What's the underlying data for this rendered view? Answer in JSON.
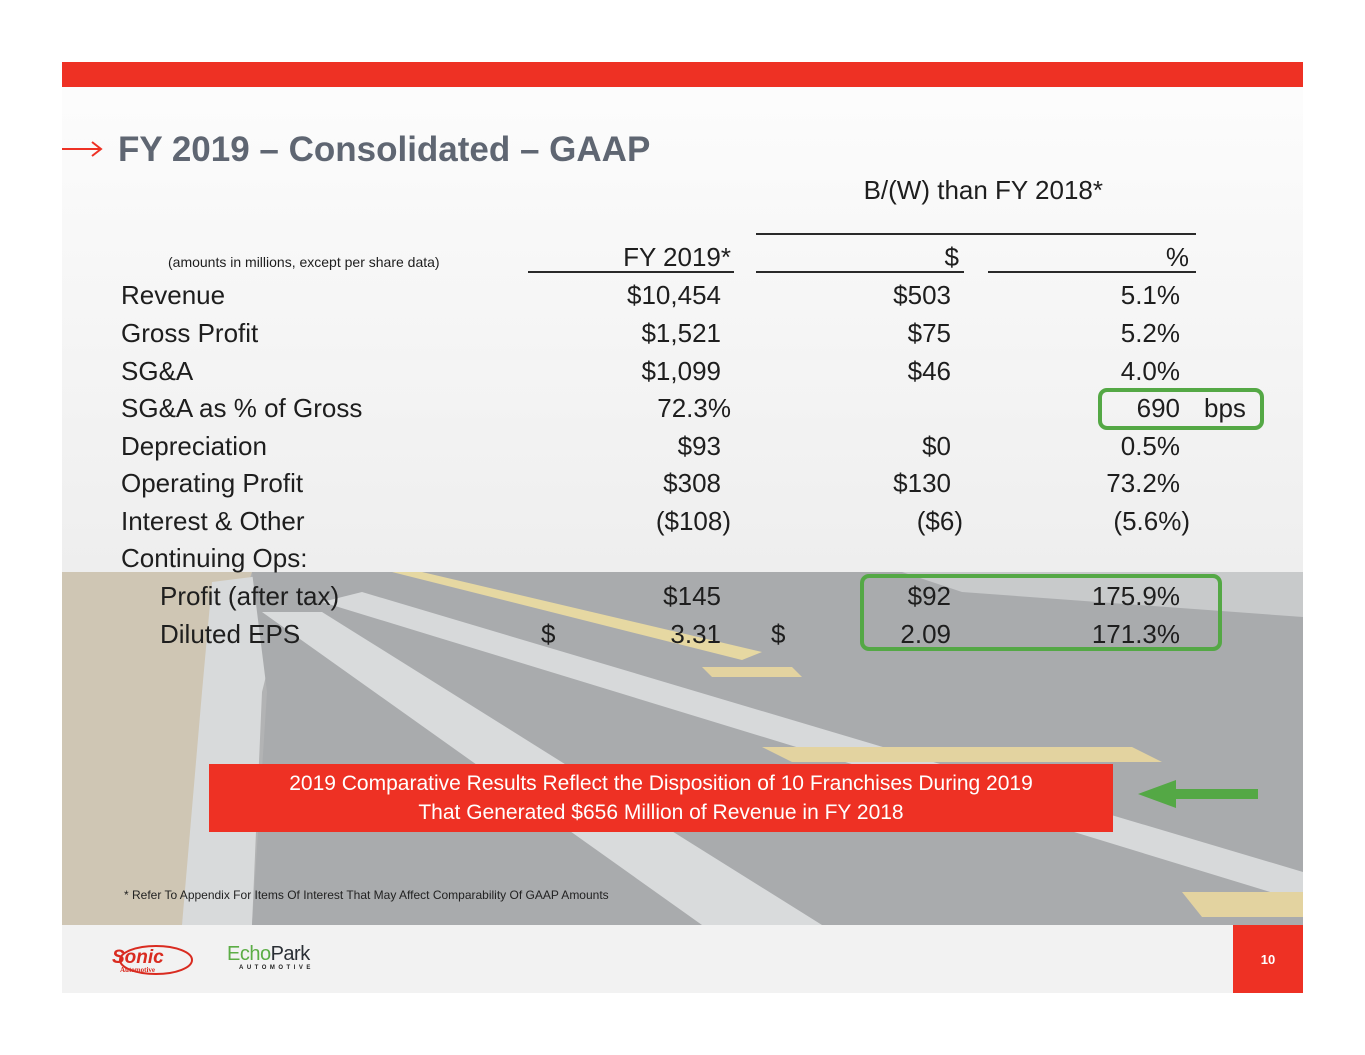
{
  "slide": {
    "title": "FY 2019 – Consolidated – GAAP",
    "page_number": "10"
  },
  "table": {
    "units_note": "(amounts in millions, except per share data)",
    "group_header": "B/(W) than FY 2018*",
    "col_fy": "FY 2019*",
    "col_dollar": "$",
    "col_pct": "%",
    "rows": [
      {
        "label": "Revenue",
        "fy": "$10,454",
        "dollar": "$503",
        "pct": "5.1%"
      },
      {
        "label": "Gross Profit",
        "fy": "$1,521",
        "dollar": "$75",
        "pct": "5.2%"
      },
      {
        "label": "SG&A",
        "fy": "$1,099",
        "dollar": "$46",
        "pct": "4.0%"
      },
      {
        "label": "SG&A as % of Gross",
        "fy": "72.3%",
        "dollar": "",
        "pct": "690",
        "pct_unit": "bps"
      },
      {
        "label": "Depreciation",
        "fy": "$93",
        "dollar": "$0",
        "pct": "0.5%"
      },
      {
        "label": "Operating Profit",
        "fy": "$308",
        "dollar": "$130",
        "pct": "73.2%"
      },
      {
        "label": "Interest & Other",
        "fy": "($108)",
        "dollar": "($6)",
        "pct": "(5.6%)"
      },
      {
        "label": "Continuing Ops:"
      },
      {
        "label": "Profit (after tax)",
        "fy": "$145",
        "dollar": "$92",
        "pct": "175.9%"
      },
      {
        "label": "Diluted EPS",
        "fy_sym": "$",
        "fy": "3.31",
        "dollar_sym": "$",
        "dollar": "2.09",
        "pct": "171.3%"
      }
    ]
  },
  "callout": {
    "line1": "2019 Comparative Results Reflect the Disposition of 10 Franchises During 2019",
    "line2": "That Generated $656 Million of Revenue in FY 2018"
  },
  "footnote": "* Refer To Appendix For Items Of Interest That May Affect Comparability Of GAAP Amounts",
  "logos": {
    "sonic": {
      "word": "Sonic",
      "sub": "Automotive"
    },
    "echopark": {
      "word_a": "Echo",
      "word_b": "Park",
      "sub": "AUTOMOTIVE"
    }
  },
  "colors": {
    "brand_red": "#ee3124",
    "highlight_green": "#54a845",
    "title_gray": "#5f6672"
  }
}
